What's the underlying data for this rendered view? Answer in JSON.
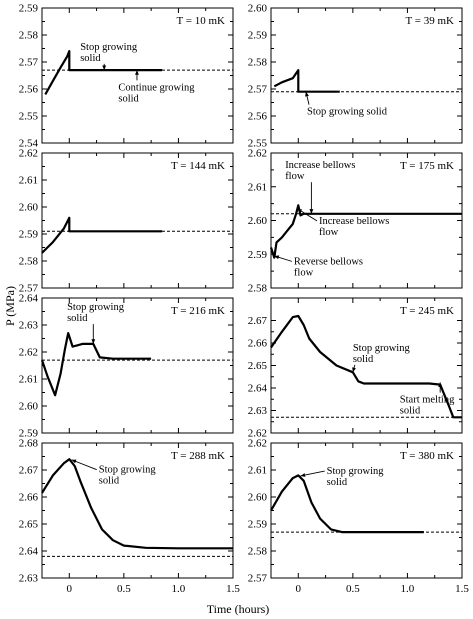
{
  "figure": {
    "ylabel": "P (MPa)",
    "xlabel": "Time (hours)",
    "x_ticks": [
      0,
      0.5,
      1.0,
      1.5
    ],
    "x_tick_labels": [
      "0",
      "0.5",
      "1.0",
      "1.5"
    ]
  },
  "chart_data": [
    {
      "type": "line",
      "temperature_label": "T = 10 mK",
      "xlim": [
        -0.25,
        1.5
      ],
      "ylim": [
        2.54,
        2.59
      ],
      "y_ticks": [
        "2.54",
        "2.55",
        "2.56",
        "2.57",
        "2.58",
        "2.59"
      ],
      "dashed_level": 2.567,
      "series": [
        {
          "x": [
            -0.22,
            -0.15,
            -0.08,
            -0.02,
            0.0,
            0.0,
            0.2,
            0.5,
            0.85
          ],
          "y": [
            2.558,
            2.563,
            2.568,
            2.572,
            2.574,
            2.567,
            2.567,
            2.567,
            2.567
          ]
        }
      ],
      "annotations": [
        {
          "lines": [
            "Stop growing",
            "solid"
          ],
          "point": [
            0.32,
            2.567
          ],
          "label_at": [
            0.1,
            2.5745
          ],
          "label_side": "above"
        },
        {
          "lines": [
            "Continue growing",
            "solid"
          ],
          "point": [
            0.62,
            2.567
          ],
          "label_at": [
            0.45,
            2.5595
          ],
          "label_side": "below"
        }
      ]
    },
    {
      "type": "line",
      "temperature_label": "T = 39 mK",
      "xlim": [
        -0.25,
        1.5
      ],
      "ylim": [
        2.55,
        2.6
      ],
      "y_ticks": [
        "2.55",
        "2.56",
        "2.57",
        "2.58",
        "2.59",
        "2.60"
      ],
      "dashed_level": 2.569,
      "series": [
        {
          "x": [
            -0.22,
            -0.15,
            -0.05,
            0.0,
            0.0,
            0.1,
            0.2,
            0.38
          ],
          "y": [
            2.571,
            2.5725,
            2.574,
            2.577,
            2.569,
            2.569,
            2.569,
            2.569
          ]
        }
      ],
      "annotations": [
        {
          "lines": [
            "Stop growing solid"
          ],
          "point": [
            0.07,
            2.569
          ],
          "label_at": [
            0.08,
            2.5605
          ],
          "label_side": "below"
        }
      ]
    },
    {
      "type": "line",
      "temperature_label": "T = 144 mK",
      "xlim": [
        -0.25,
        1.5
      ],
      "ylim": [
        2.57,
        2.62
      ],
      "y_ticks": [
        "2.57",
        "2.58",
        "2.59",
        "2.60",
        "2.61",
        "2.62"
      ],
      "dashed_level": 2.591,
      "series": [
        {
          "x": [
            -0.25,
            -0.15,
            -0.05,
            0.0,
            0.0,
            0.2,
            0.5,
            0.85
          ],
          "y": [
            2.583,
            2.587,
            2.592,
            2.596,
            2.591,
            2.591,
            2.591,
            2.591
          ]
        }
      ],
      "annotations": []
    },
    {
      "type": "line",
      "temperature_label": "T = 175 mK",
      "xlim": [
        -0.25,
        1.5
      ],
      "ylim": [
        2.58,
        2.62
      ],
      "y_ticks": [
        "2.58",
        "2.59",
        "2.60",
        "2.61",
        "2.62"
      ],
      "dashed_level": 2.602,
      "series": [
        {
          "x": [
            -0.25,
            -0.22,
            -0.2,
            -0.15,
            -0.1,
            -0.05,
            -0.02,
            0.0,
            0.02,
            0.05,
            0.1,
            0.3,
            0.6,
            1.0,
            1.5
          ],
          "y": [
            2.592,
            2.589,
            2.5935,
            2.595,
            2.597,
            2.599,
            2.602,
            2.6045,
            2.6015,
            2.602,
            2.602,
            2.602,
            2.602,
            2.602,
            2.602
          ]
        }
      ],
      "annotations": [
        {
          "lines": [
            "Increase bellows",
            "flow"
          ],
          "point": [
            0.12,
            2.602
          ],
          "label_at": [
            -0.12,
            2.6155
          ],
          "label_side": "above"
        },
        {
          "lines": [
            "Increase bellows",
            "flow"
          ],
          "point": [
            -0.01,
            2.6035
          ],
          "label_at": [
            0.19,
            2.599
          ],
          "label_side": "right"
        },
        {
          "lines": [
            "Reverse bellows",
            "flow"
          ],
          "point": [
            -0.22,
            2.5895
          ],
          "label_at": [
            -0.04,
            2.587
          ],
          "label_side": "right"
        }
      ]
    },
    {
      "type": "line",
      "temperature_label": "T = 216 mK",
      "xlim": [
        -0.25,
        1.5
      ],
      "ylim": [
        2.59,
        2.64
      ],
      "y_ticks": [
        "2.59",
        "2.60",
        "2.61",
        "2.62",
        "2.63",
        "2.64"
      ],
      "dashed_level": 2.617,
      "series": [
        {
          "x": [
            -0.25,
            -0.2,
            -0.13,
            -0.08,
            -0.04,
            -0.01,
            0.03,
            0.08,
            0.12,
            0.18,
            0.22,
            0.28,
            0.4,
            0.55,
            0.75
          ],
          "y": [
            2.617,
            2.611,
            2.604,
            2.612,
            2.621,
            2.627,
            2.622,
            2.6225,
            2.623,
            2.623,
            2.623,
            2.618,
            2.6175,
            2.6175,
            2.6175
          ]
        }
      ],
      "annotations": [
        {
          "lines": [
            "Stop growing",
            "solid"
          ],
          "point": [
            0.22,
            2.623
          ],
          "label_at": [
            -0.02,
            2.6355
          ],
          "label_side": "above"
        }
      ]
    },
    {
      "type": "line",
      "temperature_label": "T = 245 mK",
      "xlim": [
        -0.25,
        1.5
      ],
      "ylim": [
        2.62,
        2.68
      ],
      "y_ticks": [
        "2.62",
        "2.63",
        "2.64",
        "2.65",
        "2.66",
        "2.67"
      ],
      "dashed_level": 2.627,
      "series": [
        {
          "x": [
            -0.25,
            -0.15,
            -0.05,
            0.0,
            0.05,
            0.1,
            0.2,
            0.35,
            0.5,
            0.55,
            0.6,
            0.7,
            0.9,
            1.2,
            1.3,
            1.38,
            1.42,
            1.5
          ],
          "y": [
            2.658,
            2.665,
            2.6715,
            2.672,
            2.668,
            2.662,
            2.656,
            2.65,
            2.647,
            2.643,
            2.642,
            2.642,
            2.642,
            2.642,
            2.6415,
            2.632,
            2.627,
            2.627
          ]
        }
      ],
      "annotations": [
        {
          "lines": [
            "Stop growing",
            "solid"
          ],
          "point": [
            0.5,
            2.647
          ],
          "label_at": [
            0.5,
            2.6565
          ],
          "label_side": "above"
        },
        {
          "lines": [
            "Start melting",
            "solid"
          ],
          "point": [
            1.3,
            2.6425
          ],
          "label_at": [
            0.93,
            2.6335
          ],
          "label_side": "below"
        }
      ]
    },
    {
      "type": "line",
      "temperature_label": "T = 288 mK",
      "xlim": [
        -0.25,
        1.5
      ],
      "ylim": [
        2.63,
        2.68
      ],
      "y_ticks": [
        "2.63",
        "2.64",
        "2.65",
        "2.66",
        "2.67",
        "2.68"
      ],
      "dashed_level": 2.638,
      "series": [
        {
          "x": [
            -0.25,
            -0.15,
            -0.05,
            0.0,
            0.05,
            0.1,
            0.2,
            0.3,
            0.4,
            0.5,
            0.7,
            1.0,
            1.5
          ],
          "y": [
            2.6615,
            2.668,
            2.6725,
            2.674,
            2.6715,
            2.666,
            2.656,
            2.648,
            2.644,
            2.642,
            2.6412,
            2.641,
            2.641
          ]
        }
      ],
      "annotations": [
        {
          "lines": [
            "Stop growing",
            "solid"
          ],
          "point": [
            0.02,
            2.6738
          ],
          "label_at": [
            0.27,
            2.669
          ],
          "label_side": "right"
        }
      ]
    },
    {
      "type": "line",
      "temperature_label": "T = 380 mK",
      "xlim": [
        -0.25,
        1.5
      ],
      "ylim": [
        2.57,
        2.62
      ],
      "y_ticks": [
        "2.57",
        "2.58",
        "2.59",
        "2.60",
        "2.61",
        "2.62"
      ],
      "dashed_level": 2.587,
      "series": [
        {
          "x": [
            -0.25,
            -0.15,
            -0.05,
            0.0,
            0.05,
            0.12,
            0.2,
            0.3,
            0.4,
            0.55,
            0.8,
            1.15
          ],
          "y": [
            2.595,
            2.602,
            2.607,
            2.608,
            2.606,
            2.598,
            2.592,
            2.588,
            2.587,
            2.587,
            2.587,
            2.587
          ]
        }
      ],
      "annotations": [
        {
          "lines": [
            "Stop growing",
            "solid"
          ],
          "point": [
            0.02,
            2.6078
          ],
          "label_at": [
            0.26,
            2.6085
          ],
          "label_side": "right"
        }
      ]
    }
  ]
}
